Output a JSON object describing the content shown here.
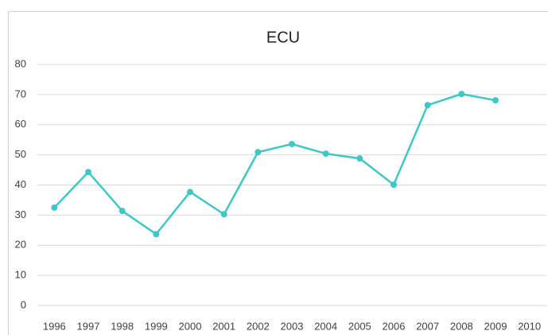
{
  "chart_data": {
    "type": "line",
    "title": "ECU",
    "categories": [
      "1996",
      "1997",
      "1998",
      "1999",
      "2000",
      "2001",
      "2002",
      "2003",
      "2004",
      "2005",
      "2006",
      "2007",
      "2008",
      "2009",
      "2010"
    ],
    "series": [
      {
        "name": "ECU",
        "color": "#3ec7c4",
        "values": [
          32.5,
          44.3,
          31.4,
          23.7,
          37.7,
          30.3,
          50.9,
          53.6,
          50.4,
          48.8,
          40.1,
          66.5,
          70.2,
          68.1,
          null
        ]
      }
    ],
    "ylim": [
      0,
      80
    ],
    "yticks": [
      0,
      10,
      20,
      30,
      40,
      50,
      60,
      70,
      80
    ],
    "grid": true
  }
}
